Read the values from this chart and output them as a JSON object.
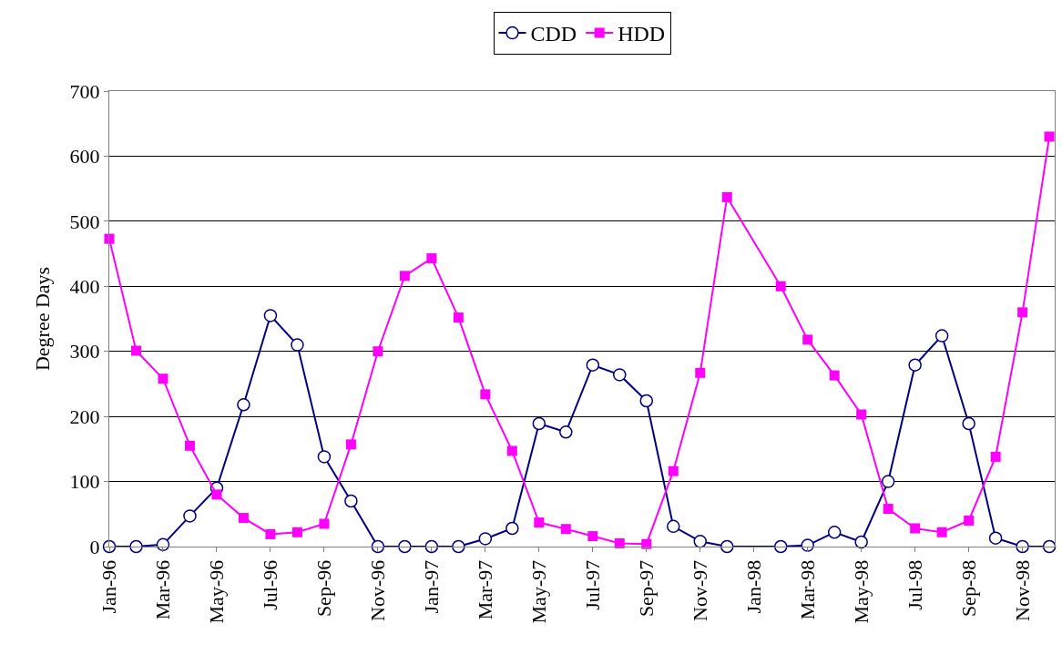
{
  "chart_data": {
    "type": "line",
    "ylabel": "Degree Days",
    "ylim": [
      0,
      700
    ],
    "yticks": [
      0,
      100,
      200,
      300,
      400,
      500,
      600,
      700
    ],
    "grid": "y",
    "legend": "top",
    "categories": [
      "Jan-96",
      null,
      "Mar-96",
      null,
      "May-96",
      null,
      "Jul-96",
      null,
      "Sep-96",
      null,
      "Nov-96",
      null,
      "Jan-97",
      null,
      "Mar-97",
      null,
      "May-97",
      null,
      "Jul-97",
      null,
      "Sep-97",
      null,
      "Nov-97",
      null,
      "Jan-98",
      null,
      "Mar-98",
      null,
      "May-98",
      null,
      "Jul-98",
      null,
      "Sep-98",
      null,
      "Nov-98",
      null
    ],
    "series": [
      {
        "name": "CDD",
        "color": "#000080",
        "marker": "circle",
        "values": [
          0,
          0,
          3,
          47,
          90,
          218,
          355,
          310,
          138,
          70,
          0,
          0,
          0,
          0,
          12,
          28,
          189,
          176,
          279,
          264,
          224,
          31,
          8,
          0,
          null,
          0,
          2,
          22,
          7,
          100,
          279,
          324,
          189,
          13,
          0,
          0
        ]
      },
      {
        "name": "HDD",
        "color": "#ff00ff",
        "marker": "square",
        "values": [
          473,
          301,
          258,
          155,
          80,
          44,
          19,
          22,
          35,
          157,
          300,
          416,
          443,
          352,
          234,
          147,
          37,
          27,
          16,
          5,
          4,
          116,
          267,
          537,
          null,
          400,
          318,
          263,
          203,
          58,
          28,
          22,
          40,
          138,
          360,
          630
        ]
      }
    ]
  }
}
